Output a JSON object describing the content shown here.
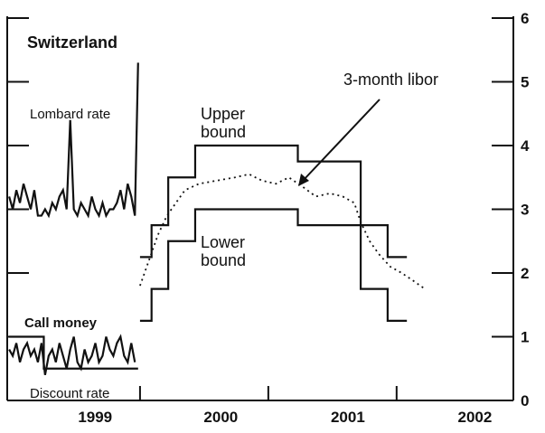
{
  "chart_data": {
    "type": "line",
    "title": "Switzerland",
    "xlim": [
      1998.965,
      2002.91
    ],
    "xticks": [
      {
        "value": 1999.65,
        "label": "1999"
      },
      {
        "value": 2000.63,
        "label": "2000"
      },
      {
        "value": 2001.62,
        "label": "2001"
      },
      {
        "value": 2002.61,
        "label": "2002"
      }
    ],
    "xtick_marks": [
      2000,
      2001,
      2002
    ],
    "ylim": [
      0,
      6
    ],
    "yticks": [
      0,
      1,
      2,
      3,
      4,
      5,
      6
    ],
    "series": [
      {
        "name": "Lombard rate",
        "color": "#111111",
        "x": [
          1998.98,
          1999.008,
          1999.036,
          1999.064,
          1999.092,
          1999.12,
          1999.148,
          1999.176,
          1999.204,
          1999.232,
          1999.26,
          1999.288,
          1999.316,
          1999.344,
          1999.372,
          1999.4,
          1999.428,
          1999.456,
          1999.484,
          1999.512,
          1999.54,
          1999.568,
          1999.596,
          1999.624,
          1999.652,
          1999.68,
          1999.708,
          1999.736,
          1999.764,
          1999.792,
          1999.82,
          1999.848,
          1999.876,
          1999.904,
          1999.932,
          1999.96,
          1999.985
        ],
        "values": [
          3.2,
          3.0,
          3.3,
          3.1,
          3.4,
          3.2,
          3.0,
          3.3,
          2.9,
          2.9,
          3.0,
          2.9,
          3.1,
          3.0,
          3.2,
          3.3,
          3.0,
          4.4,
          3.0,
          2.9,
          3.1,
          3.0,
          2.9,
          3.2,
          3.0,
          2.9,
          3.1,
          2.9,
          3.0,
          3.0,
          3.1,
          3.3,
          3.0,
          3.4,
          3.2,
          2.9,
          5.3
        ]
      },
      {
        "name": "Call money",
        "color": "#111111",
        "x": [
          1998.98,
          1999.008,
          1999.036,
          1999.064,
          1999.092,
          1999.12,
          1999.148,
          1999.176,
          1999.204,
          1999.232,
          1999.26,
          1999.288,
          1999.316,
          1999.344,
          1999.372,
          1999.4,
          1999.428,
          1999.456,
          1999.484,
          1999.512,
          1999.54,
          1999.568,
          1999.596,
          1999.624,
          1999.652,
          1999.68,
          1999.708,
          1999.736,
          1999.764,
          1999.792,
          1999.82,
          1999.848,
          1999.876,
          1999.904,
          1999.932,
          1999.96
        ],
        "values": [
          0.8,
          0.7,
          0.9,
          0.6,
          0.8,
          0.9,
          0.7,
          0.8,
          0.6,
          0.9,
          0.4,
          0.7,
          0.8,
          0.6,
          0.9,
          0.7,
          0.5,
          0.8,
          1.0,
          0.6,
          0.5,
          0.8,
          0.6,
          0.7,
          0.9,
          0.6,
          0.7,
          1.0,
          0.8,
          0.7,
          0.9,
          1.0,
          0.7,
          0.6,
          0.9,
          0.6
        ]
      },
      {
        "name": "Discount rate",
        "color": "#111111",
        "steps": true,
        "x": [
          1998.98,
          1999.25,
          1999.985
        ],
        "values": [
          1,
          0.5,
          0.5
        ]
      },
      {
        "name": "Upper bound",
        "color": "#111111",
        "steps": true,
        "x": [
          2000,
          2000.09,
          2000.22,
          2000.43,
          2001.23,
          2001.72,
          2001.93,
          2002.08
        ],
        "values": [
          2.25,
          2.75,
          3.5,
          4,
          3.75,
          2.75,
          2.25,
          2.25
        ]
      },
      {
        "name": "Lower bound",
        "color": "#111111",
        "steps": true,
        "x": [
          2000,
          2000.09,
          2000.22,
          2000.43,
          2001.23,
          2001.72,
          2001.93,
          2002.08
        ],
        "values": [
          1.25,
          1.75,
          2.5,
          3,
          2.75,
          1.75,
          1.25,
          1.25
        ]
      },
      {
        "name": "3-month libor",
        "color": "#111111",
        "dashed": true,
        "x": [
          2000,
          2000.07,
          2000.14,
          2000.21,
          2000.28,
          2000.35,
          2000.46,
          2000.6,
          2000.74,
          2000.85,
          2000.95,
          2001.06,
          2001.16,
          2001.27,
          2001.37,
          2001.48,
          2001.58,
          2001.67,
          2001.72,
          2001.79,
          2001.86,
          2001.95,
          2002.04,
          2002.15,
          2002.22
        ],
        "values": [
          1.8,
          2.2,
          2.6,
          2.9,
          3.1,
          3.3,
          3.4,
          3.45,
          3.5,
          3.55,
          3.45,
          3.4,
          3.5,
          3.35,
          3.2,
          3.25,
          3.2,
          3.1,
          2.8,
          2.5,
          2.3,
          2.1,
          2.0,
          1.85,
          1.75
        ]
      }
    ]
  }
}
